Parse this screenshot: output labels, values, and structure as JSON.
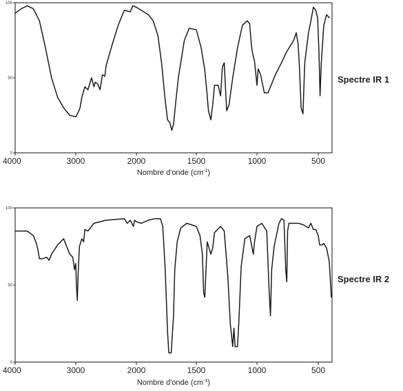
{
  "chart_data": [
    {
      "type": "line",
      "side_label": "Spectre IR 1",
      "xlabel_main": "Nombre d'onde (cm",
      "xlabel_sup": "-1",
      "xlabel_end": ")",
      "xlim": [
        4000,
        400
      ],
      "ylim": [
        0,
        100
      ],
      "x_ticks": [
        4000,
        3000,
        2000,
        1500,
        1000,
        500
      ],
      "x_tick_labels": [
        "4000",
        "3000",
        "2000",
        "1500",
        "1000",
        "500"
      ],
      "y_ticks": [
        0,
        50,
        100
      ],
      "y_tick_labels": [
        "0",
        "50",
        "100"
      ],
      "grid": false,
      "series": [
        {
          "x": [
            4000,
            3900,
            3800,
            3700,
            3600,
            3500,
            3400,
            3300,
            3200,
            3100,
            3000,
            2960,
            2930,
            2900,
            2850,
            2800,
            2740,
            2700,
            2680,
            2640,
            2600,
            2560,
            2520,
            2500,
            2400,
            2300,
            2200,
            2100,
            2060,
            2000,
            1960,
            1900,
            1860,
            1820,
            1790,
            1760,
            1740,
            1720,
            1705,
            1690,
            1670,
            1650,
            1620,
            1600,
            1560,
            1500,
            1460,
            1430,
            1410,
            1400,
            1380,
            1365,
            1350,
            1320,
            1300,
            1285,
            1270,
            1250,
            1230,
            1200,
            1160,
            1120,
            1080,
            1060,
            1045,
            1035,
            1020,
            1000,
            990,
            970,
            940,
            910,
            880,
            850,
            800,
            760,
            700,
            680,
            665,
            655,
            640,
            625,
            610,
            580,
            560,
            540,
            520,
            505,
            495,
            487,
            478,
            460,
            440,
            420
          ],
          "y": [
            93,
            96,
            98,
            96,
            88,
            70,
            50,
            37,
            30,
            25,
            24,
            27,
            30,
            37,
            44,
            42,
            50,
            44,
            47,
            46,
            42,
            52,
            51,
            58,
            72,
            85,
            95,
            94,
            98,
            97,
            95,
            92,
            88,
            78,
            60,
            35,
            22,
            20,
            15,
            19,
            35,
            50,
            65,
            75,
            83,
            82,
            70,
            55,
            38,
            28,
            22,
            32,
            45,
            45,
            38,
            57,
            60,
            28,
            32,
            50,
            70,
            85,
            88,
            86,
            71,
            66,
            61,
            45,
            56,
            52,
            40,
            40,
            46,
            52,
            60,
            67,
            75,
            80,
            73,
            60,
            30,
            26,
            60,
            80,
            88,
            97,
            95,
            90,
            67,
            38,
            60,
            85,
            92,
            90
          ]
        }
      ]
    },
    {
      "type": "line",
      "side_label": "Spectre IR 2",
      "xlabel_main": "Nombre d'onde (cm",
      "xlabel_sup": "-1",
      "xlabel_end": ")",
      "xlim": [
        4000,
        400
      ],
      "ylim": [
        0,
        100
      ],
      "x_ticks": [
        4000,
        3000,
        2000,
        1500,
        1000,
        500
      ],
      "x_tick_labels": [
        "4000",
        "3000",
        "2000",
        "1500",
        "1000",
        "500"
      ],
      "y_ticks": [
        0,
        50,
        100
      ],
      "y_tick_labels": [
        "0",
        "50",
        "100"
      ],
      "grid": false,
      "series": [
        {
          "x": [
            4000,
            3800,
            3700,
            3650,
            3620,
            3600,
            3550,
            3480,
            3440,
            3400,
            3300,
            3200,
            3100,
            3050,
            3020,
            3000,
            2990,
            2975,
            2960,
            2940,
            2900,
            2870,
            2850,
            2800,
            2700,
            2500,
            2200,
            2150,
            2100,
            2050,
            2030,
            2000,
            1960,
            1900,
            1850,
            1800,
            1780,
            1760,
            1740,
            1730,
            1710,
            1690,
            1680,
            1660,
            1630,
            1580,
            1500,
            1470,
            1450,
            1440,
            1430,
            1410,
            1380,
            1365,
            1350,
            1300,
            1270,
            1240,
            1220,
            1200,
            1190,
            1180,
            1160,
            1150,
            1130,
            1100,
            1060,
            1040,
            1030,
            1020,
            1000,
            960,
            920,
            900,
            890,
            880,
            860,
            820,
            800,
            780,
            765,
            757,
            750,
            740,
            700,
            660,
            620,
            580,
            560,
            540,
            520,
            500,
            490,
            470,
            460,
            440,
            420,
            405
          ],
          "y": [
            85,
            85,
            82,
            77,
            72,
            67,
            67,
            68,
            66,
            70,
            76,
            80,
            70,
            68,
            60,
            64,
            50,
            40,
            58,
            75,
            80,
            78,
            86,
            85,
            90,
            92,
            93,
            90,
            92,
            88,
            92,
            91,
            90,
            92,
            93,
            93,
            88,
            60,
            20,
            6,
            6,
            30,
            60,
            78,
            87,
            90,
            88,
            82,
            70,
            45,
            42,
            78,
            70,
            74,
            84,
            88,
            85,
            55,
            25,
            10,
            22,
            10,
            10,
            25,
            62,
            80,
            82,
            74,
            70,
            78,
            88,
            90,
            85,
            45,
            30,
            60,
            75,
            90,
            93,
            92,
            60,
            52,
            85,
            90,
            90,
            90,
            89,
            87,
            90,
            86,
            86,
            82,
            76,
            76,
            77,
            74,
            65,
            42
          ]
        }
      ]
    }
  ]
}
